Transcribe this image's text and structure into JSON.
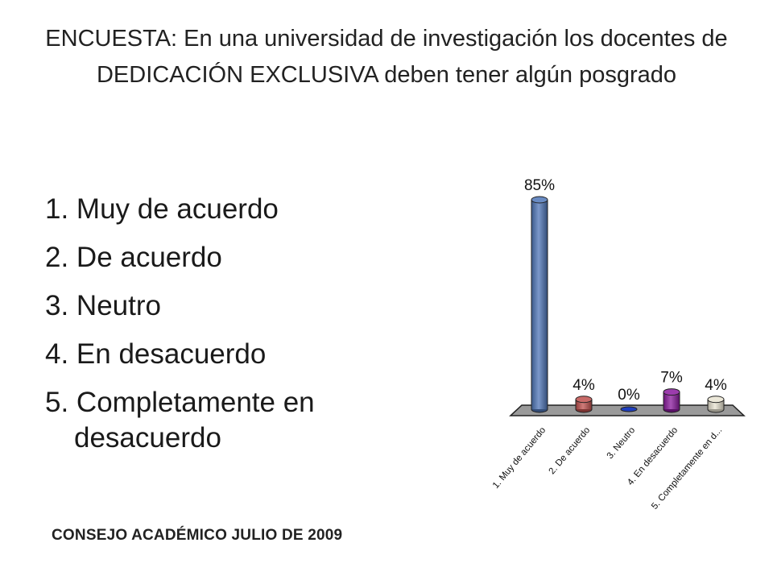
{
  "slide": {
    "title": "ENCUESTA: En una universidad de investigación los docentes de DEDICACIÓN EXCLUSIVA deben tener algún posgrado",
    "options": [
      "1. Muy de acuerdo",
      "2. De acuerdo",
      "3. Neutro",
      "4. En desacuerdo",
      "5. Completamente en desacuerdo"
    ],
    "footer": "CONSEJO ACADÉMICO JULIO DE 2009"
  },
  "chart_data": {
    "type": "bar",
    "categories": [
      "1. Muy de acuerdo",
      "2. De acuerdo",
      "3. Neutro",
      "4. En desacuerdo",
      "5. Completamente en d..."
    ],
    "values": [
      85,
      4,
      0,
      7,
      4
    ],
    "data_labels": [
      "85%",
      "4%",
      "0%",
      "7%",
      "4%"
    ],
    "colors": [
      "#4f76b8",
      "#c0504d",
      "#1f3fbf",
      "#8b1a9e",
      "#e9e4d2"
    ],
    "ylim": [
      0,
      85
    ],
    "grid": false,
    "legend": "none"
  }
}
